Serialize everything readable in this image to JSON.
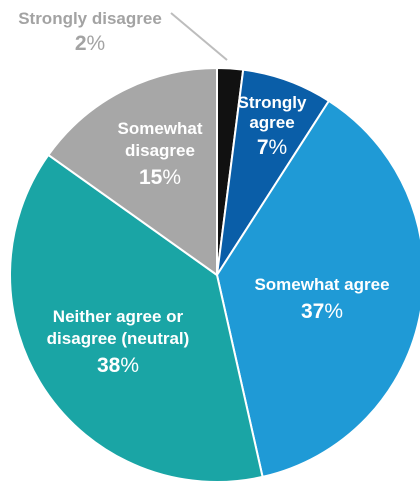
{
  "chart_data": {
    "type": "pie",
    "title": "",
    "categories": [
      "Strongly disagree",
      "Strongly agree",
      "Somewhat agree",
      "Neither agree or disagree (neutral)",
      "Somewhat disagree"
    ],
    "values": [
      2,
      7,
      37,
      38,
      15
    ],
    "unit": "%",
    "colors": [
      "#111111",
      "#0a5ea8",
      "#1f9ad6",
      "#1aa5a5",
      "#a7a7a7"
    ],
    "label_colors": [
      "#a3a3a3",
      "#ffffff",
      "#ffffff",
      "#ffffff",
      "#ffffff"
    ],
    "label_lines": [
      [
        "Strongly disagree"
      ],
      [
        "Strongly",
        "agree"
      ],
      [
        "Somewhat agree"
      ],
      [
        "Neither agree or",
        "disagree (neutral)"
      ],
      [
        "Somewhat",
        "disagree"
      ]
    ],
    "start_angle_deg": 0,
    "direction": "clockwise",
    "legend": "none"
  }
}
